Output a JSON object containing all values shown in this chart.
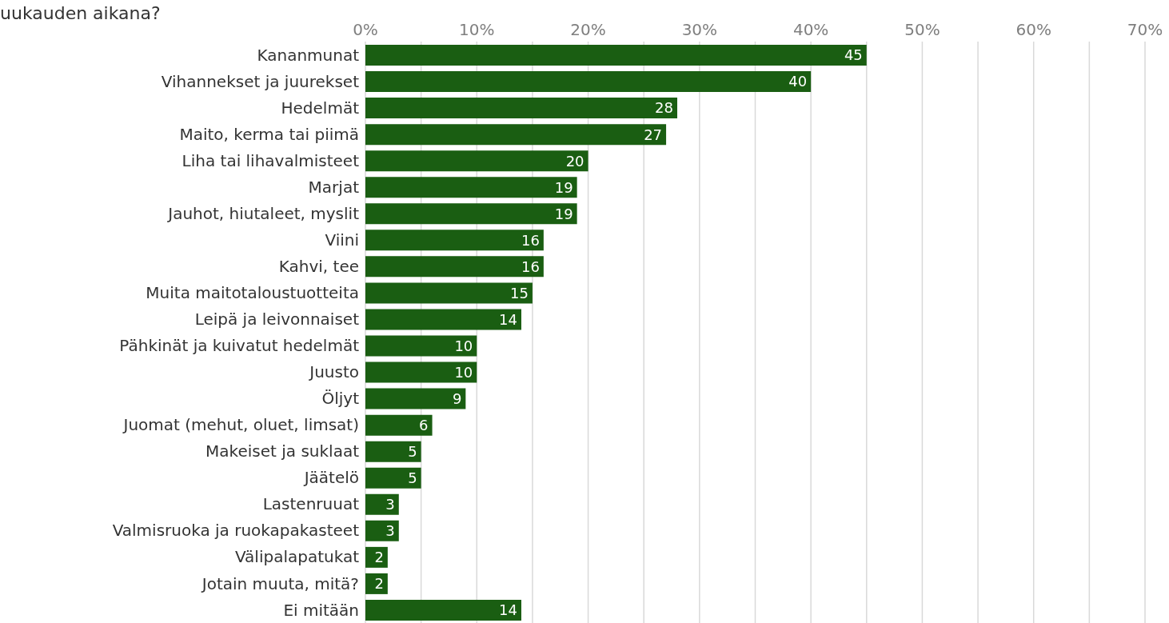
{
  "chart_data": {
    "type": "bar",
    "orientation": "horizontal",
    "title": "uukauden aikana?",
    "categories": [
      "Kananmunat",
      "Vihannekset ja juurekset",
      "Hedelmät",
      "Maito, kerma tai piimä",
      "Liha tai lihavalmisteet",
      "Marjat",
      "Jauhot, hiutaleet, myslit",
      "Viini",
      "Kahvi, tee",
      "Muita maitotaloustuotteita",
      "Leipä ja leivonnaiset",
      "Pähkinät ja kuivatut hedelmät",
      "Juusto",
      "Öljyt",
      "Juomat (mehut, oluet, limsat)",
      "Makeiset ja suklaat",
      "Jäätelö",
      "Lastenruuat",
      "Valmisruoka ja ruokapakasteet",
      "Välipalapatukat",
      "Jotain muuta, mitä?",
      "Ei mitään"
    ],
    "values": [
      45,
      40,
      28,
      27,
      20,
      19,
      19,
      16,
      16,
      15,
      14,
      10,
      10,
      9,
      6,
      5,
      5,
      3,
      3,
      2,
      2,
      14
    ],
    "color": "#1a5e12",
    "data_labels": true,
    "grid": "x",
    "xlim": [
      0,
      70
    ],
    "xticks": [
      {
        "value": 0,
        "label": "0%"
      },
      {
        "value": 5,
        "label": null
      },
      {
        "value": 10,
        "label": "10%"
      },
      {
        "value": 15,
        "label": null
      },
      {
        "value": 20,
        "label": "20%"
      },
      {
        "value": 25,
        "label": null
      },
      {
        "value": 30,
        "label": "30%"
      },
      {
        "value": 35,
        "label": null
      },
      {
        "value": 40,
        "label": "40%"
      },
      {
        "value": 45,
        "label": null
      },
      {
        "value": 50,
        "label": "50%"
      },
      {
        "value": 55,
        "label": null
      },
      {
        "value": 60,
        "label": "60%"
      },
      {
        "value": 65,
        "label": null
      },
      {
        "value": 70,
        "label": "70%"
      }
    ]
  }
}
